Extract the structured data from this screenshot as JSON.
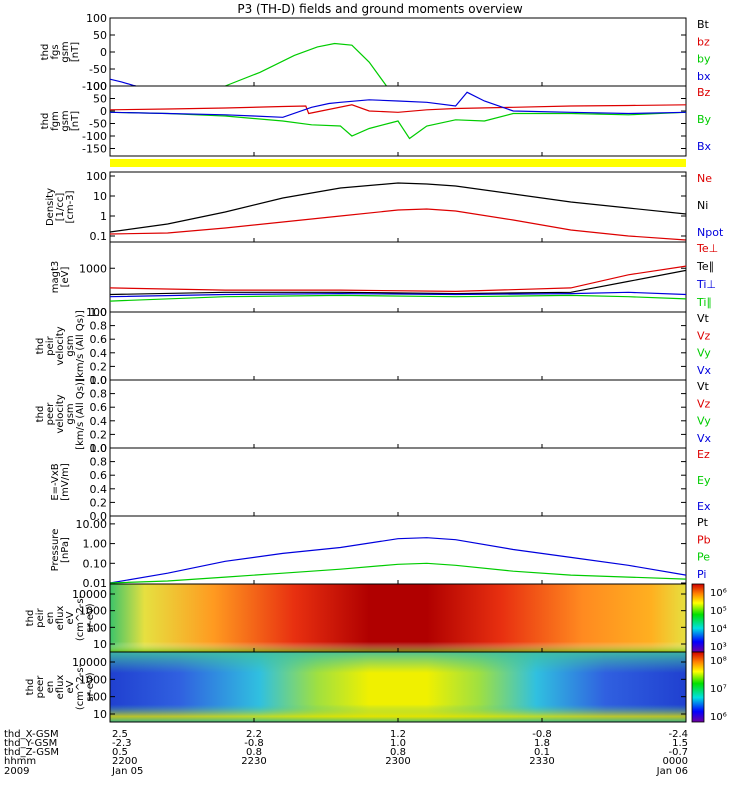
{
  "title": "P3 (TH-D) fields and ground moments overview",
  "colors": {
    "black": "#000000",
    "red": "#dd0000",
    "green": "#00cc00",
    "blue": "#0000dd",
    "yellow": "#ffff00"
  },
  "ephemeris": {
    "row_labels": [
      "thd_X-GSM",
      "thd_Y-GSM",
      "thd_Z-GSM",
      "hhmm",
      "2009"
    ],
    "columns": [
      {
        "x": "2.5",
        "y": "-2.3",
        "z": "0.5",
        "time": "2200",
        "date": "Jan 05"
      },
      {
        "x": "2.2",
        "y": "-0.8",
        "z": "0.8",
        "time": "2230",
        "date": ""
      },
      {
        "x": "1.2",
        "y": "1.0",
        "z": "0.8",
        "time": "2300",
        "date": ""
      },
      {
        "x": "-0.8",
        "y": "1.8",
        "z": "0.1",
        "time": "2330",
        "date": ""
      },
      {
        "x": "-2.4",
        "y": "1.5",
        "z": "-0.7",
        "time": "0000",
        "date": "Jan 06"
      }
    ]
  },
  "chart_data": [
    {
      "id": "fgs",
      "type": "line",
      "ylabel": [
        "thd",
        "fgs",
        "gsm",
        "[nT]"
      ],
      "yticks": [
        "100",
        "50",
        "0",
        "-50",
        "-100"
      ],
      "ylim": [
        -100,
        100
      ],
      "legend": [
        "Bt",
        "bz",
        "by",
        "bx"
      ],
      "legend_colors": [
        "black",
        "red",
        "green",
        "blue"
      ],
      "series": [
        {
          "name": "by",
          "color": "green",
          "x": [
            0.2,
            0.26,
            0.32,
            0.36,
            0.39,
            0.42,
            0.45,
            0.48
          ],
          "y": [
            -100,
            -60,
            -10,
            15,
            25,
            20,
            -30,
            -100
          ]
        },
        {
          "name": "bx",
          "color": "blue",
          "x": [
            0.0,
            0.02,
            0.04,
            0.045
          ],
          "y": [
            -80,
            -88,
            -98,
            -100
          ]
        }
      ]
    },
    {
      "id": "fgm",
      "type": "line",
      "ylabel": [
        "thd",
        "fgm",
        "gsm",
        "[nT]"
      ],
      "yticks": [
        "100",
        "50",
        "0",
        "-50",
        "-100",
        "-150"
      ],
      "ylim": [
        -180,
        100
      ],
      "legend": [
        "Bz",
        "By",
        "Bx"
      ],
      "legend_colors": [
        "red",
        "green",
        "blue"
      ],
      "series": [
        {
          "name": "Bz",
          "color": "red",
          "x": [
            0,
            0.1,
            0.2,
            0.3,
            0.34,
            0.345,
            0.42,
            0.45,
            0.5,
            0.55,
            0.6,
            0.7,
            0.8,
            0.9,
            1.0
          ],
          "y": [
            5,
            8,
            12,
            18,
            20,
            -10,
            25,
            0,
            -5,
            5,
            10,
            15,
            20,
            22,
            25
          ]
        },
        {
          "name": "By",
          "color": "green",
          "x": [
            0,
            0.1,
            0.2,
            0.3,
            0.35,
            0.4,
            0.42,
            0.45,
            0.5,
            0.52,
            0.55,
            0.6,
            0.65,
            0.7,
            0.8,
            0.9,
            1.0
          ],
          "y": [
            -5,
            -10,
            -20,
            -40,
            -55,
            -60,
            -100,
            -70,
            -40,
            -110,
            -60,
            -35,
            -40,
            -10,
            -10,
            -15,
            -5
          ]
        },
        {
          "name": "Bx",
          "color": "blue",
          "x": [
            0,
            0.1,
            0.2,
            0.25,
            0.3,
            0.35,
            0.38,
            0.4,
            0.45,
            0.5,
            0.55,
            0.6,
            0.62,
            0.65,
            0.7,
            0.8,
            0.9,
            1.0
          ],
          "y": [
            -5,
            -10,
            -15,
            -20,
            -25,
            15,
            30,
            35,
            45,
            40,
            35,
            20,
            75,
            40,
            0,
            -5,
            -10,
            -5
          ]
        }
      ]
    },
    {
      "id": "density",
      "type": "line",
      "log": true,
      "ylabel": [
        "Density",
        "[1/cc]",
        "[cm-3]"
      ],
      "yticks": [
        "100",
        "10",
        "1",
        "0.1"
      ],
      "ylim_log": [
        -1.3,
        2.2
      ],
      "legend": [
        "Ne",
        "Ni",
        "Npot"
      ],
      "legend_colors": [
        "red",
        "black",
        "blue"
      ],
      "series": [
        {
          "name": "Ni",
          "color": "black",
          "x": [
            0,
            0.1,
            0.2,
            0.3,
            0.4,
            0.5,
            0.55,
            0.6,
            0.7,
            0.8,
            0.9,
            1.0
          ],
          "y": [
            -0.8,
            -0.4,
            0.2,
            0.9,
            1.4,
            1.65,
            1.6,
            1.5,
            1.1,
            0.7,
            0.4,
            0.1
          ]
        },
        {
          "name": "Ne",
          "color": "red",
          "x": [
            0,
            0.1,
            0.2,
            0.3,
            0.4,
            0.5,
            0.55,
            0.6,
            0.7,
            0.8,
            0.9,
            1.0
          ],
          "y": [
            -0.9,
            -0.85,
            -0.6,
            -0.3,
            0.0,
            0.3,
            0.35,
            0.25,
            -0.2,
            -0.7,
            -1.0,
            -1.2
          ]
        }
      ]
    },
    {
      "id": "temp",
      "type": "line",
      "log": true,
      "ylabel": [
        "magt3",
        "[eV]"
      ],
      "yticks": [
        "1000",
        "100"
      ],
      "ylim_log": [
        2.0,
        3.6
      ],
      "legend": [
        "Te⊥",
        "Te∥",
        "Ti⊥",
        "Ti∥"
      ],
      "legend_colors": [
        "red",
        "black",
        "blue",
        "green"
      ],
      "series": [
        {
          "name": "Te⊥",
          "color": "red",
          "x": [
            0,
            0.2,
            0.4,
            0.6,
            0.8,
            0.9,
            1.0
          ],
          "y": [
            2.55,
            2.5,
            2.5,
            2.47,
            2.55,
            2.85,
            3.05
          ]
        },
        {
          "name": "Te∥",
          "color": "black",
          "x": [
            0,
            0.2,
            0.4,
            0.6,
            0.8,
            0.9,
            1.0
          ],
          "y": [
            2.4,
            2.45,
            2.45,
            2.42,
            2.45,
            2.7,
            2.95
          ]
        },
        {
          "name": "Ti⊥",
          "color": "blue",
          "x": [
            0,
            0.2,
            0.4,
            0.6,
            0.8,
            0.9,
            1.0
          ],
          "y": [
            2.35,
            2.4,
            2.42,
            2.4,
            2.42,
            2.45,
            2.4
          ]
        },
        {
          "name": "Ti∥",
          "color": "green",
          "x": [
            0,
            0.2,
            0.4,
            0.6,
            0.8,
            0.9,
            1.0
          ],
          "y": [
            2.25,
            2.35,
            2.38,
            2.35,
            2.38,
            2.35,
            2.3
          ]
        }
      ]
    },
    {
      "id": "peir_vel",
      "type": "line",
      "ylabel": [
        "thd",
        "peir",
        "velocity",
        "gsm",
        "[km/s (All Qs)]"
      ],
      "yticks": [
        "1.0",
        "0.8",
        "0.6",
        "0.4",
        "0.2",
        "0.0"
      ],
      "ylim": [
        0,
        1
      ],
      "legend": [
        "Vt",
        "Vz",
        "Vy",
        "Vx"
      ],
      "legend_colors": [
        "black",
        "red",
        "green",
        "blue"
      ],
      "series": []
    },
    {
      "id": "peer_vel",
      "type": "line",
      "ylabel": [
        "thd",
        "peer",
        "velocity",
        "gsm",
        "[km/s (All Qs)]"
      ],
      "yticks": [
        "1.0",
        "0.8",
        "0.6",
        "0.4",
        "0.2",
        "0.0"
      ],
      "ylim": [
        0,
        1
      ],
      "legend": [
        "Vt",
        "Vz",
        "Vy",
        "Vx"
      ],
      "legend_colors": [
        "black",
        "red",
        "green",
        "blue"
      ],
      "series": []
    },
    {
      "id": "efield",
      "type": "line",
      "ylabel": [
        "E=-VxB",
        "[mV/m]"
      ],
      "yticks": [
        "1.0",
        "0.8",
        "0.6",
        "0.4",
        "0.2",
        "0.0"
      ],
      "ylim": [
        0,
        1
      ],
      "legend": [
        "Ez",
        "Ey",
        "Ex"
      ],
      "legend_colors": [
        "red",
        "green",
        "blue"
      ],
      "series": []
    },
    {
      "id": "pressure",
      "type": "line",
      "log": true,
      "ylabel": [
        "Pressure",
        "[nPa]"
      ],
      "yticks": [
        "10.00",
        "1.00",
        "0.10",
        "0.01"
      ],
      "ylim_log": [
        -2.05,
        1.4
      ],
      "legend": [
        "Pt",
        "Pb",
        "Pe",
        "Pi"
      ],
      "legend_colors": [
        "black",
        "red",
        "green",
        "blue"
      ],
      "series": [
        {
          "name": "Pi",
          "color": "blue",
          "x": [
            0,
            0.1,
            0.2,
            0.3,
            0.4,
            0.5,
            0.55,
            0.6,
            0.7,
            0.8,
            0.9,
            1.0
          ],
          "y": [
            -2.0,
            -1.5,
            -0.9,
            -0.5,
            -0.2,
            0.25,
            0.3,
            0.2,
            -0.3,
            -0.7,
            -1.1,
            -1.6
          ]
        },
        {
          "name": "Pe",
          "color": "green",
          "x": [
            0,
            0.1,
            0.2,
            0.3,
            0.4,
            0.5,
            0.55,
            0.6,
            0.7,
            0.8,
            0.9,
            1.0
          ],
          "y": [
            -2.0,
            -1.9,
            -1.7,
            -1.5,
            -1.3,
            -1.05,
            -1.0,
            -1.1,
            -1.4,
            -1.6,
            -1.7,
            -1.8
          ]
        }
      ]
    },
    {
      "id": "peir_eflux",
      "type": "heatmap",
      "ylabel": [
        "thd",
        "peir",
        "en",
        "eflux",
        "eV",
        "(cm^2-s-",
        "sr-eV)"
      ],
      "yticks": [
        "10000",
        "1000",
        "100",
        "10"
      ],
      "colorbar_ticks": [
        "10⁶",
        "10⁵",
        "10⁴",
        "10³"
      ]
    },
    {
      "id": "peer_eflux",
      "type": "heatmap",
      "ylabel": [
        "thd",
        "peer",
        "en",
        "eflux",
        "eV",
        "(cm^2-s-",
        "sr-eV)"
      ],
      "yticks": [
        "10000",
        "1000",
        "100",
        "10"
      ],
      "colorbar_ticks": [
        "10⁸",
        "10⁷",
        "10⁶"
      ]
    }
  ]
}
